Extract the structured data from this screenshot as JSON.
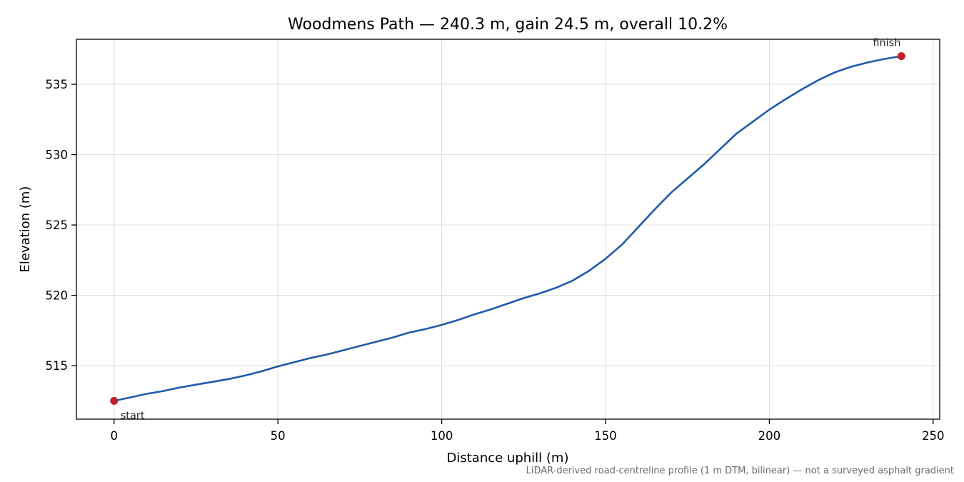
{
  "chart_data": {
    "type": "line",
    "title": "Woodmens Path — 240.3 m, gain 24.5 m, overall 10.2%",
    "xlabel": "Distance uphill (m)",
    "ylabel": "Elevation (m)",
    "xlim": [
      -11.5,
      252
    ],
    "ylim": [
      511.2,
      538.2
    ],
    "x_ticks": [
      0,
      50,
      100,
      150,
      200,
      250
    ],
    "y_ticks": [
      515,
      520,
      525,
      530,
      535
    ],
    "grid": true,
    "series": [
      {
        "color": "#1f5aa8",
        "points": [
          [
            0,
            512.5
          ],
          [
            5,
            512.75
          ],
          [
            10,
            513.0
          ],
          [
            15,
            513.2
          ],
          [
            20,
            513.45
          ],
          [
            25,
            513.65
          ],
          [
            30,
            513.85
          ],
          [
            35,
            514.05
          ],
          [
            40,
            514.3
          ],
          [
            45,
            514.6
          ],
          [
            50,
            514.95
          ],
          [
            55,
            515.25
          ],
          [
            60,
            515.55
          ],
          [
            65,
            515.8
          ],
          [
            70,
            516.1
          ],
          [
            75,
            516.4
          ],
          [
            80,
            516.7
          ],
          [
            85,
            517.0
          ],
          [
            90,
            517.35
          ],
          [
            95,
            517.6
          ],
          [
            100,
            517.9
          ],
          [
            105,
            518.25
          ],
          [
            110,
            518.65
          ],
          [
            115,
            519.0
          ],
          [
            120,
            519.4
          ],
          [
            125,
            519.8
          ],
          [
            130,
            520.15
          ],
          [
            135,
            520.55
          ],
          [
            140,
            521.05
          ],
          [
            145,
            521.75
          ],
          [
            150,
            522.6
          ],
          [
            155,
            523.6
          ],
          [
            160,
            524.85
          ],
          [
            165,
            526.1
          ],
          [
            170,
            527.3
          ],
          [
            175,
            528.3
          ],
          [
            180,
            529.3
          ],
          [
            185,
            530.4
          ],
          [
            190,
            531.5
          ],
          [
            195,
            532.35
          ],
          [
            200,
            533.2
          ],
          [
            205,
            533.95
          ],
          [
            210,
            534.65
          ],
          [
            215,
            535.3
          ],
          [
            220,
            535.85
          ],
          [
            225,
            536.25
          ],
          [
            230,
            536.55
          ],
          [
            235,
            536.8
          ],
          [
            240.3,
            537.0
          ]
        ]
      }
    ],
    "markers": [
      {
        "label": "start",
        "x": 0,
        "y": 512.5,
        "color": "#c0202a"
      },
      {
        "label": "finish",
        "x": 240.3,
        "y": 537.0,
        "color": "#c0202a"
      }
    ],
    "footnote": "LiDAR-derived road-centreline profile (1 m DTM, bilinear) — not a surveyed asphalt gradient"
  }
}
